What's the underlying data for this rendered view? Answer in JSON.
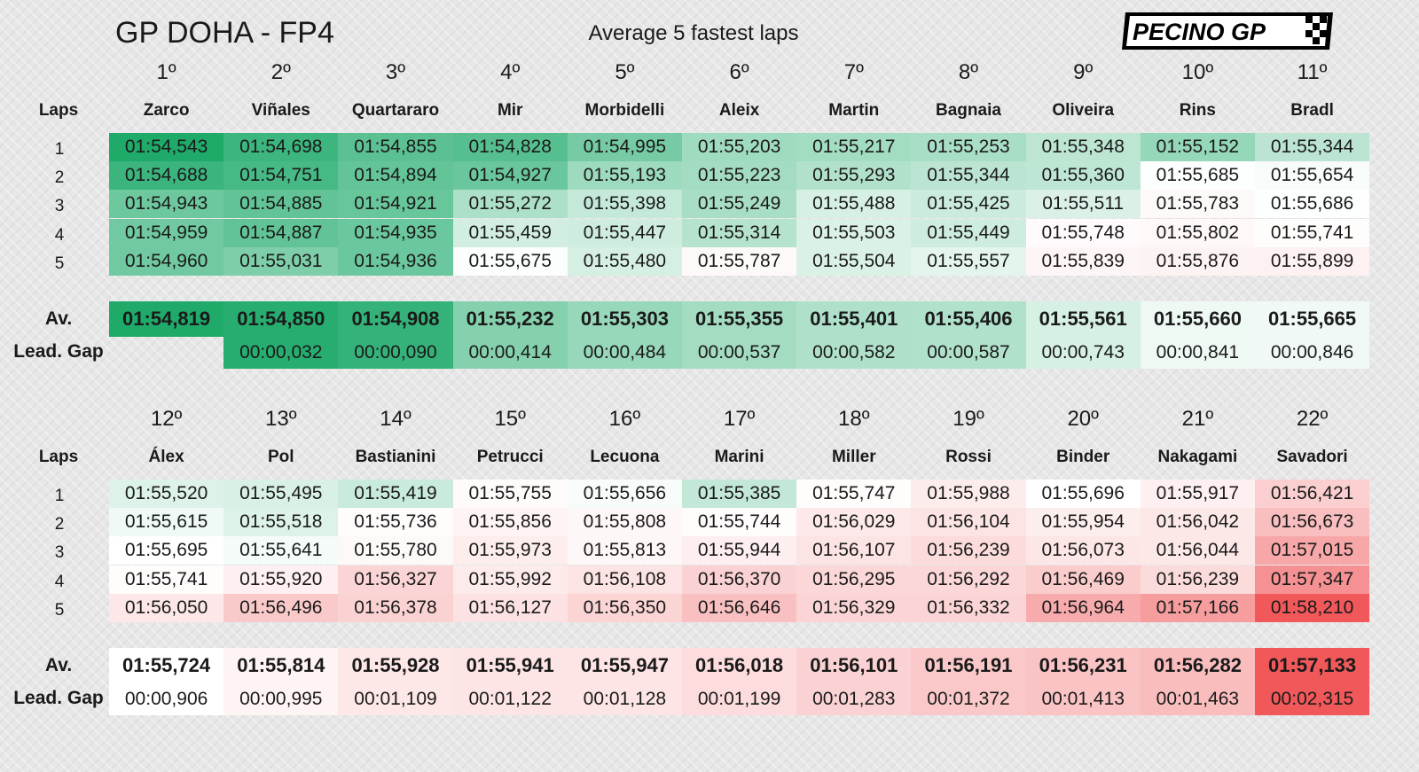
{
  "header": {
    "title": "GP DOHA - FP4",
    "subtitle": "Average 5 fastest laps",
    "logo_text": "PECINO GP"
  },
  "labels": {
    "laps": "Laps",
    "avg": "Av.",
    "gap": "Lead. Gap"
  },
  "colors": {
    "green": "#1faa6a",
    "white": "#ffffff",
    "red": "#f0585a"
  },
  "chart_data": {
    "type": "table",
    "title": "GP DOHA - FP4",
    "subtitle": "Average 5 fastest laps",
    "lap_labels": [
      "1",
      "2",
      "3",
      "4",
      "5"
    ],
    "blocks": [
      {
        "riders": [
          {
            "pos": "1º",
            "name": "Zarco",
            "laps": [
              "01:54,543",
              "01:54,688",
              "01:54,943",
              "01:54,959",
              "01:54,960"
            ],
            "avg": "01:54,819",
            "gap": ""
          },
          {
            "pos": "2º",
            "name": "Viñales",
            "laps": [
              "01:54,698",
              "01:54,751",
              "01:54,885",
              "01:54,887",
              "01:55,031"
            ],
            "avg": "01:54,850",
            "gap": "00:00,032"
          },
          {
            "pos": "3º",
            "name": "Quartararo",
            "laps": [
              "01:54,855",
              "01:54,894",
              "01:54,921",
              "01:54,935",
              "01:54,936"
            ],
            "avg": "01:54,908",
            "gap": "00:00,090"
          },
          {
            "pos": "4º",
            "name": "Mir",
            "laps": [
              "01:54,828",
              "01:54,927",
              "01:55,272",
              "01:55,459",
              "01:55,675"
            ],
            "avg": "01:55,232",
            "gap": "00:00,414"
          },
          {
            "pos": "5º",
            "name": "Morbidelli",
            "laps": [
              "01:54,995",
              "01:55,193",
              "01:55,398",
              "01:55,447",
              "01:55,480"
            ],
            "avg": "01:55,303",
            "gap": "00:00,484"
          },
          {
            "pos": "6º",
            "name": "Aleix",
            "laps": [
              "01:55,203",
              "01:55,223",
              "01:55,249",
              "01:55,314",
              "01:55,787"
            ],
            "avg": "01:55,355",
            "gap": "00:00,537"
          },
          {
            "pos": "7º",
            "name": "Martin",
            "laps": [
              "01:55,217",
              "01:55,293",
              "01:55,488",
              "01:55,503",
              "01:55,504"
            ],
            "avg": "01:55,401",
            "gap": "00:00,582"
          },
          {
            "pos": "8º",
            "name": "Bagnaia",
            "laps": [
              "01:55,253",
              "01:55,344",
              "01:55,425",
              "01:55,449",
              "01:55,557"
            ],
            "avg": "01:55,406",
            "gap": "00:00,587"
          },
          {
            "pos": "9º",
            "name": "Oliveira",
            "laps": [
              "01:55,348",
              "01:55,360",
              "01:55,511",
              "01:55,748",
              "01:55,839"
            ],
            "avg": "01:55,561",
            "gap": "00:00,743"
          },
          {
            "pos": "10º",
            "name": "Rins",
            "laps": [
              "01:55,152",
              "01:55,685",
              "01:55,783",
              "01:55,802",
              "01:55,876"
            ],
            "avg": "01:55,660",
            "gap": "00:00,841"
          },
          {
            "pos": "11º",
            "name": "Bradl",
            "laps": [
              "01:55,344",
              "01:55,654",
              "01:55,686",
              "01:55,741",
              "01:55,899"
            ],
            "avg": "01:55,665",
            "gap": "00:00,846"
          }
        ]
      },
      {
        "riders": [
          {
            "pos": "12º",
            "name": "Álex",
            "laps": [
              "01:55,520",
              "01:55,615",
              "01:55,695",
              "01:55,741",
              "01:56,050"
            ],
            "avg": "01:55,724",
            "gap": "00:00,906"
          },
          {
            "pos": "13º",
            "name": "Pol",
            "laps": [
              "01:55,495",
              "01:55,518",
              "01:55,641",
              "01:55,920",
              "01:56,496"
            ],
            "avg": "01:55,814",
            "gap": "00:00,995"
          },
          {
            "pos": "14º",
            "name": "Bastianini",
            "laps": [
              "01:55,419",
              "01:55,736",
              "01:55,780",
              "01:56,327",
              "01:56,378"
            ],
            "avg": "01:55,928",
            "gap": "00:01,109"
          },
          {
            "pos": "15º",
            "name": "Petrucci",
            "laps": [
              "01:55,755",
              "01:55,856",
              "01:55,973",
              "01:55,992",
              "01:56,127"
            ],
            "avg": "01:55,941",
            "gap": "00:01,122"
          },
          {
            "pos": "16º",
            "name": "Lecuona",
            "laps": [
              "01:55,656",
              "01:55,808",
              "01:55,813",
              "01:56,108",
              "01:56,350"
            ],
            "avg": "01:55,947",
            "gap": "00:01,128"
          },
          {
            "pos": "17º",
            "name": "Marini",
            "laps": [
              "01:55,385",
              "01:55,744",
              "01:55,944",
              "01:56,370",
              "01:56,646"
            ],
            "avg": "01:56,018",
            "gap": "00:01,199"
          },
          {
            "pos": "18º",
            "name": "Miller",
            "laps": [
              "01:55,747",
              "01:56,029",
              "01:56,107",
              "01:56,295",
              "01:56,329"
            ],
            "avg": "01:56,101",
            "gap": "00:01,283"
          },
          {
            "pos": "19º",
            "name": "Rossi",
            "laps": [
              "01:55,988",
              "01:56,104",
              "01:56,239",
              "01:56,292",
              "01:56,332"
            ],
            "avg": "01:56,191",
            "gap": "00:01,372"
          },
          {
            "pos": "20º",
            "name": "Binder",
            "laps": [
              "01:55,696",
              "01:55,954",
              "01:56,073",
              "01:56,469",
              "01:56,964"
            ],
            "avg": "01:56,231",
            "gap": "00:01,413"
          },
          {
            "pos": "21º",
            "name": "Nakagami",
            "laps": [
              "01:55,917",
              "01:56,042",
              "01:56,044",
              "01:56,239",
              "01:57,166"
            ],
            "avg": "01:56,282",
            "gap": "00:01,463"
          },
          {
            "pos": "22º",
            "name": "Savadori",
            "laps": [
              "01:56,421",
              "01:56,673",
              "01:57,015",
              "01:57,347",
              "01:58,210"
            ],
            "avg": "01:57,133",
            "gap": "00:02,315"
          }
        ]
      }
    ]
  }
}
